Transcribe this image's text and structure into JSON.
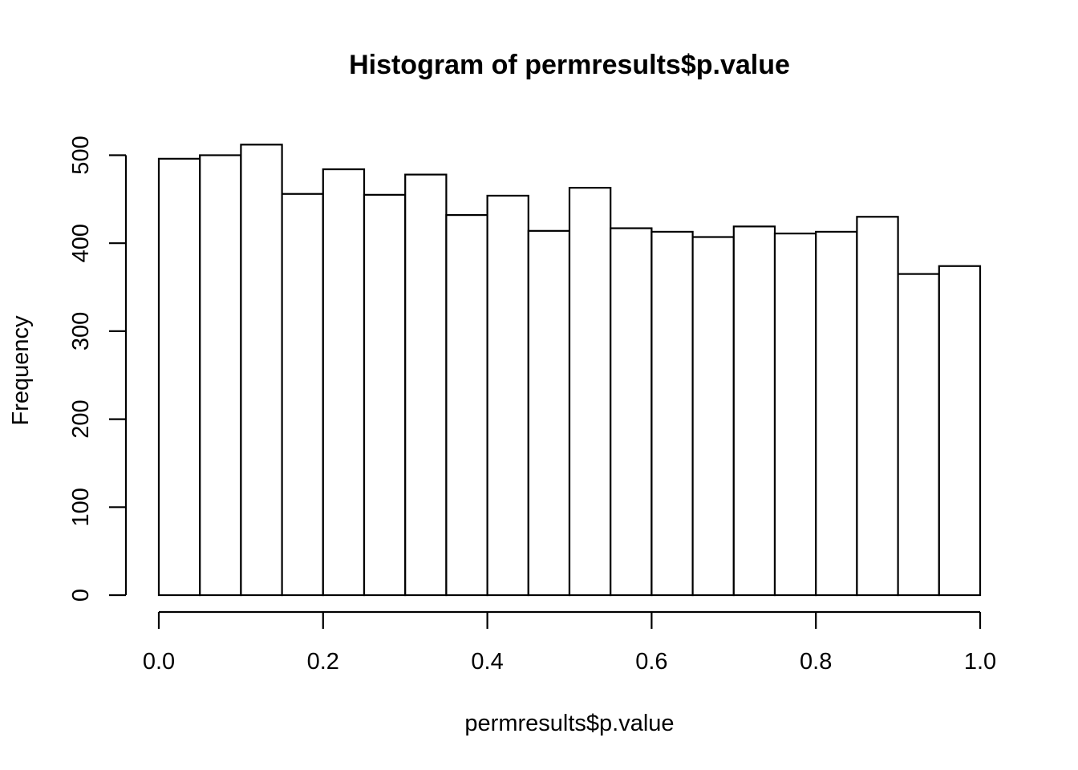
{
  "chart_data": {
    "type": "bar",
    "subtype": "histogram",
    "title": "Histogram of permresults$p.value",
    "xlabel": "permresults$p.value",
    "ylabel": "Frequency",
    "bin_width": 0.05,
    "bin_edges": [
      0.0,
      0.05,
      0.1,
      0.15,
      0.2,
      0.25,
      0.3,
      0.35,
      0.4,
      0.45,
      0.5,
      0.55,
      0.6,
      0.65,
      0.7,
      0.75,
      0.8,
      0.85,
      0.9,
      0.95,
      1.0
    ],
    "values": [
      496,
      500,
      512,
      456,
      484,
      455,
      478,
      432,
      454,
      414,
      463,
      417,
      413,
      407,
      419,
      411,
      413,
      430,
      365,
      374
    ],
    "xlim": [
      0.0,
      1.0
    ],
    "ylim": [
      0,
      500
    ],
    "x_ticks": [
      0.0,
      0.2,
      0.4,
      0.6,
      0.8,
      1.0
    ],
    "x_tick_labels": [
      "0.0",
      "0.2",
      "0.4",
      "0.6",
      "0.8",
      "1.0"
    ],
    "y_ticks": [
      0,
      100,
      200,
      300,
      400,
      500
    ],
    "y_tick_labels": [
      "0",
      "100",
      "200",
      "300",
      "400",
      "500"
    ],
    "grid": false,
    "legend": "none",
    "bar_fill": "#ffffff",
    "bar_stroke": "#000000"
  }
}
